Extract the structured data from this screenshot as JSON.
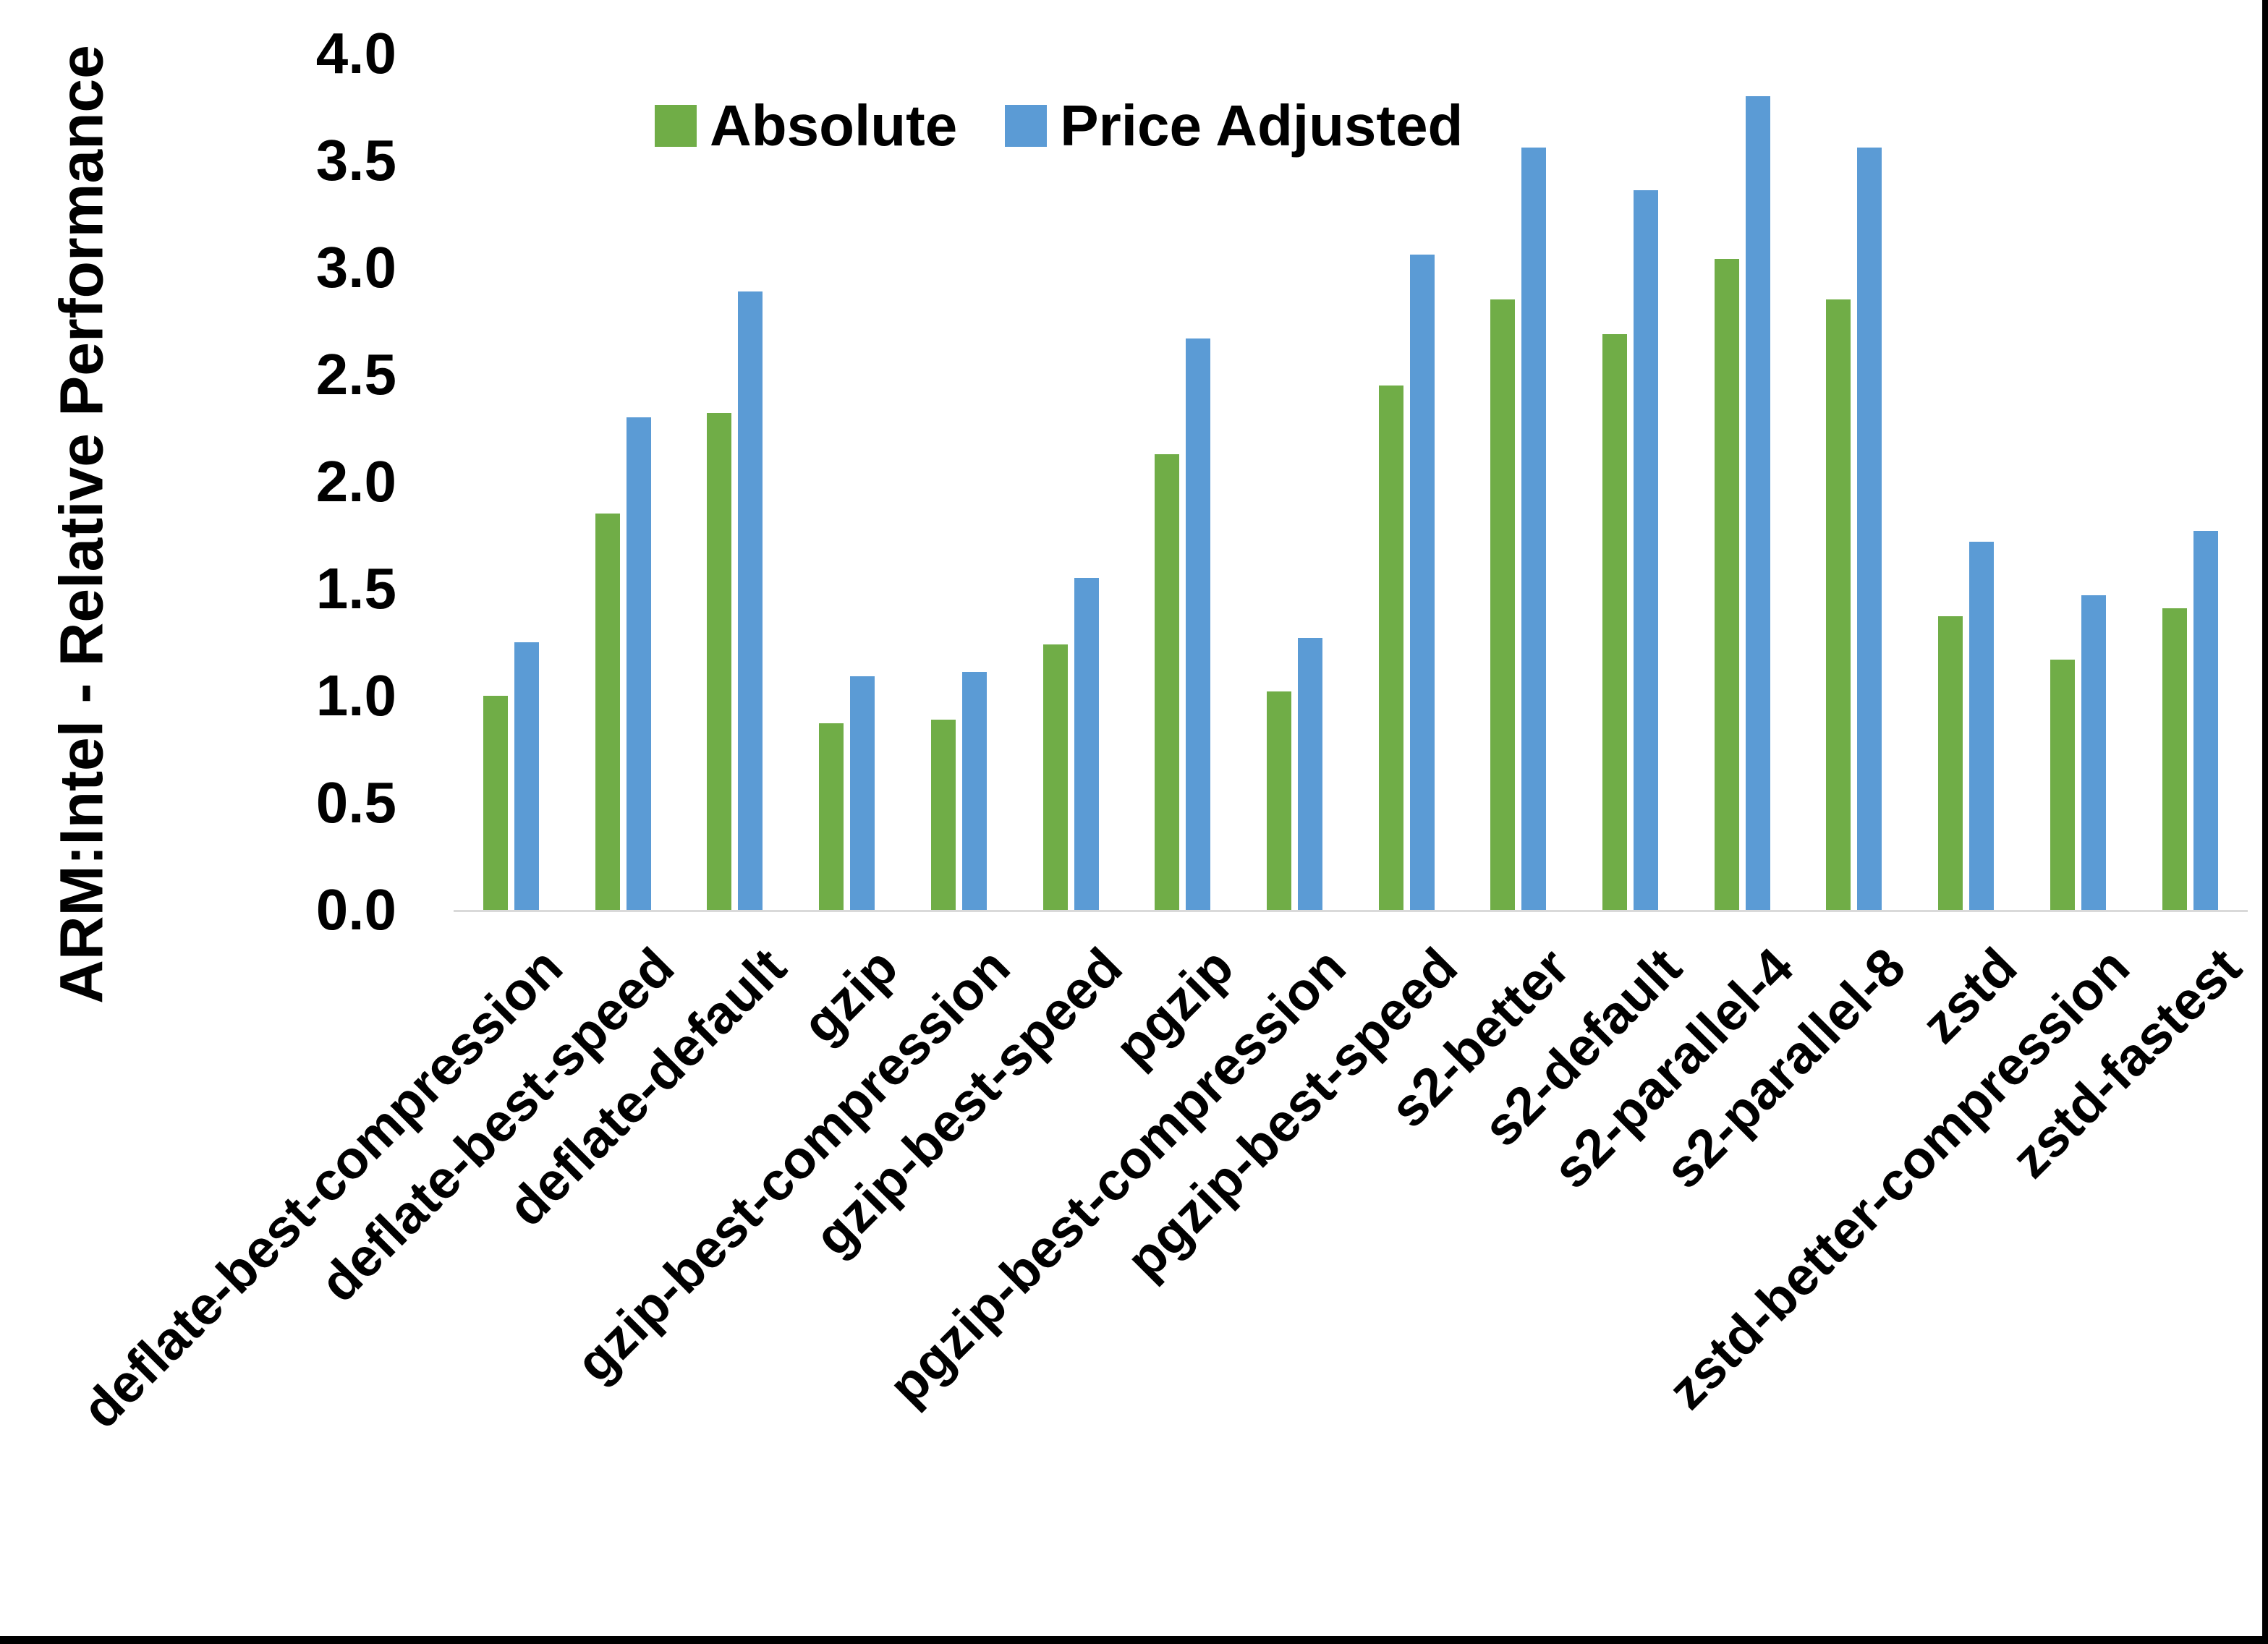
{
  "chart_data": {
    "type": "bar",
    "title": "",
    "ylabel": "ARM:Intel - Relative Performance",
    "xlabel": "",
    "ylim": [
      0.0,
      4.0
    ],
    "ytick_step": 0.5,
    "yticks": [
      "0.0",
      "0.5",
      "1.0",
      "1.5",
      "2.0",
      "2.5",
      "3.0",
      "3.5",
      "4.0"
    ],
    "grid": false,
    "legend_position": "top-center",
    "categories": [
      "deflate-best-compression",
      "deflate-best-speed",
      "deflate-default",
      "gzip",
      "gzip-best-compression",
      "gzip-best-speed",
      "pgzip",
      "pgzip-best-compression",
      "pgzip-best-speed",
      "s2-better",
      "s2-default",
      "s2-parallel-4",
      "s2-parallel-8",
      "zstd",
      "zstd-better-compression",
      "zstd-fastest"
    ],
    "series": [
      {
        "name": "Absolute",
        "color": "#70AD47",
        "values": [
          1.0,
          1.85,
          2.32,
          0.87,
          0.89,
          1.24,
          2.13,
          1.02,
          2.45,
          2.85,
          2.69,
          3.04,
          2.85,
          1.37,
          1.17,
          1.41
        ]
      },
      {
        "name": "Price Adjusted",
        "color": "#5B9BD5",
        "values": [
          1.25,
          2.3,
          2.89,
          1.09,
          1.11,
          1.55,
          2.67,
          1.27,
          3.06,
          3.56,
          3.36,
          3.8,
          3.56,
          1.72,
          1.47,
          1.77
        ]
      }
    ]
  }
}
